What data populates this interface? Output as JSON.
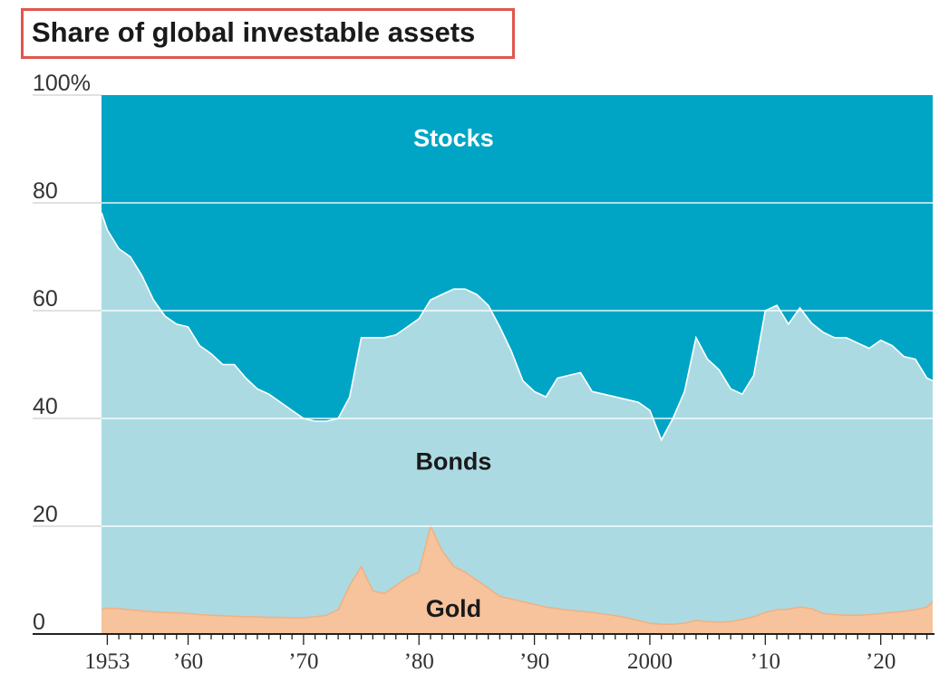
{
  "chart_data": {
    "type": "area",
    "stacked": true,
    "title": "Share of global investable assets",
    "xlabel": "",
    "ylabel": "",
    "ylim": [
      0,
      100
    ],
    "xlim": [
      1952.5,
      2024.5
    ],
    "y_ticks": [
      0,
      20,
      40,
      60,
      80,
      100
    ],
    "y_tick_labels": [
      "0",
      "20",
      "40",
      "60",
      "80",
      "100%"
    ],
    "x_ticks": [
      1953,
      1960,
      1970,
      1980,
      1990,
      2000,
      2010,
      2020
    ],
    "x_tick_labels": [
      "1953",
      "’60",
      "’70",
      "’80",
      "’90",
      "2000",
      "’10",
      "’20"
    ],
    "grid": true,
    "legend": "inline labels",
    "colors": {
      "Stocks": "#00a5c5",
      "Bonds": "#acdae2",
      "Gold": "#f6c39c",
      "Gold_line": "#f1b081"
    },
    "series_labels": [
      "Stocks",
      "Bonds",
      "Gold"
    ],
    "x": [
      1952.5,
      1953,
      1954,
      1955,
      1956,
      1957,
      1958,
      1959,
      1960,
      1961,
      1962,
      1963,
      1964,
      1965,
      1966,
      1967,
      1968,
      1969,
      1970,
      1971,
      1972,
      1973,
      1974,
      1975,
      1976,
      1977,
      1978,
      1979,
      1980,
      1981,
      1982,
      1983,
      1984,
      1985,
      1986,
      1987,
      1988,
      1989,
      1990,
      1991,
      1992,
      1993,
      1994,
      1995,
      1996,
      1997,
      1998,
      1999,
      2000,
      2001,
      2002,
      2003,
      2004,
      2005,
      2006,
      2007,
      2008,
      2009,
      2010,
      2011,
      2012,
      2013,
      2014,
      2015,
      2016,
      2017,
      2018,
      2019,
      2020,
      2021,
      2022,
      2023,
      2024,
      2024.5
    ],
    "series": [
      {
        "name": "Gold",
        "values": [
          4.5,
          4.8,
          4.7,
          4.5,
          4.3,
          4.1,
          4.0,
          3.9,
          3.8,
          3.6,
          3.5,
          3.4,
          3.3,
          3.2,
          3.2,
          3.1,
          3.1,
          3.0,
          3.0,
          3.2,
          3.5,
          4.5,
          9.0,
          12.5,
          8.0,
          7.5,
          9.0,
          10.5,
          11.5,
          20.0,
          15.5,
          12.5,
          11.5,
          10.0,
          8.5,
          7.0,
          6.5,
          6.0,
          5.5,
          5.0,
          4.7,
          4.4,
          4.2,
          4.0,
          3.7,
          3.4,
          3.0,
          2.5,
          2.0,
          1.8,
          1.8,
          2.0,
          2.5,
          2.3,
          2.2,
          2.3,
          2.7,
          3.2,
          4.0,
          4.5,
          4.6,
          5.0,
          4.7,
          3.8,
          3.6,
          3.5,
          3.5,
          3.6,
          3.8,
          4.0,
          4.2,
          4.5,
          5.0,
          6.0
        ]
      },
      {
        "name": "Bonds",
        "values": [
          73.7,
          70.2,
          66.8,
          65.5,
          62.2,
          57.9,
          55.0,
          53.6,
          53.2,
          49.9,
          48.5,
          46.6,
          46.7,
          44.3,
          42.3,
          41.4,
          39.9,
          38.5,
          37.0,
          36.3,
          36.0,
          35.5,
          35.0,
          42.5,
          47.0,
          47.5,
          46.5,
          46.5,
          47.0,
          42.0,
          47.5,
          51.5,
          52.5,
          53.0,
          52.5,
          50.0,
          46.0,
          41.0,
          39.5,
          39.0,
          42.8,
          43.6,
          44.3,
          41.0,
          40.8,
          40.6,
          40.5,
          40.5,
          39.5,
          34.2,
          38.2,
          43.0,
          52.5,
          48.7,
          46.8,
          43.2,
          41.8,
          44.8,
          56.0,
          56.5,
          52.9,
          55.5,
          53.0,
          52.2,
          51.4,
          51.5,
          50.5,
          49.4,
          50.7,
          49.5,
          47.3,
          46.5,
          42.5,
          41.0
        ]
      },
      {
        "name": "Stocks",
        "values": [
          21.8,
          25.0,
          28.5,
          30.0,
          33.5,
          38.0,
          41.0,
          42.5,
          43.0,
          46.5,
          48.0,
          50.0,
          50.0,
          52.5,
          54.5,
          55.5,
          57.0,
          58.5,
          60.0,
          60.5,
          60.5,
          60.0,
          56.0,
          45.0,
          45.0,
          45.0,
          44.5,
          43.0,
          41.5,
          38.0,
          37.0,
          36.0,
          36.0,
          37.0,
          39.0,
          43.0,
          47.5,
          53.0,
          55.0,
          56.0,
          52.5,
          52.0,
          51.5,
          55.0,
          55.5,
          56.0,
          56.5,
          57.0,
          58.5,
          64.0,
          60.0,
          55.0,
          45.0,
          49.0,
          51.0,
          54.5,
          55.5,
          52.0,
          40.0,
          39.0,
          42.5,
          39.5,
          42.3,
          44.0,
          45.0,
          45.0,
          46.0,
          47.0,
          45.5,
          46.5,
          48.5,
          49.0,
          52.5,
          53.0
        ]
      }
    ]
  }
}
